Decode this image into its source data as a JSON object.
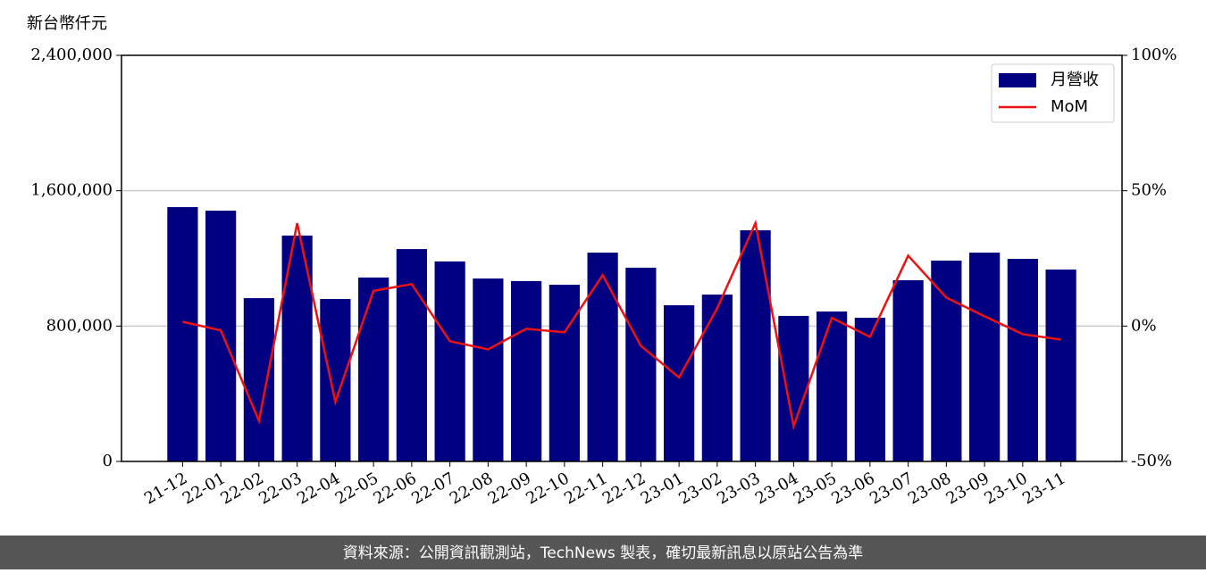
{
  "chart_data": {
    "type": "bar",
    "y_axis_label": "新台幣仟元",
    "footer": "資料來源：公開資訊觀測站，TechNews 製表，確切最新訊息以原站公告為準",
    "categories": [
      "21-12",
      "22-01",
      "22-02",
      "22-03",
      "22-04",
      "22-05",
      "22-06",
      "22-07",
      "22-08",
      "22-09",
      "22-10",
      "22-11",
      "22-12",
      "23-01",
      "23-02",
      "23-03",
      "23-04",
      "23-05",
      "23-06",
      "23-07",
      "23-08",
      "23-09",
      "23-10",
      "23-11"
    ],
    "series": [
      {
        "name": "月營收",
        "type": "bar",
        "color": "#000080",
        "values": [
          1503000,
          1482000,
          965000,
          1335000,
          960000,
          1087000,
          1255000,
          1182000,
          1081000,
          1066000,
          1044000,
          1234000,
          1145000,
          923000,
          986000,
          1366000,
          860000,
          886000,
          849000,
          1071000,
          1187000,
          1234000,
          1197000,
          1134000
        ]
      },
      {
        "name": "MoM",
        "type": "line",
        "axis": "y2",
        "color": "#ee1111",
        "values": [
          1.6,
          -1.6,
          -35,
          38,
          -28,
          13,
          15.5,
          -5.6,
          -8.6,
          -1,
          -2.3,
          18.8,
          -7.3,
          -19,
          6.6,
          38,
          -37,
          3,
          -4,
          26,
          10.5,
          3.6,
          -3,
          -5
        ]
      }
    ],
    "ylim": [
      0,
      2400000
    ],
    "yticks": [
      0,
      {
        "value": 800000,
        "label": "800,000"
      },
      {
        "value": 1600000,
        "label": "1,600,000"
      },
      {
        "value": 2400000,
        "label": "2,400,000"
      }
    ],
    "y2lim": [
      -50,
      100
    ],
    "y2ticks": [
      {
        "value": -50,
        "label": "-50%"
      },
      {
        "value": 0,
        "label": "0%"
      },
      {
        "value": 50,
        "label": "50%"
      },
      {
        "value": 100,
        "label": "100%"
      }
    ],
    "grid": true,
    "legend": "upper right"
  }
}
